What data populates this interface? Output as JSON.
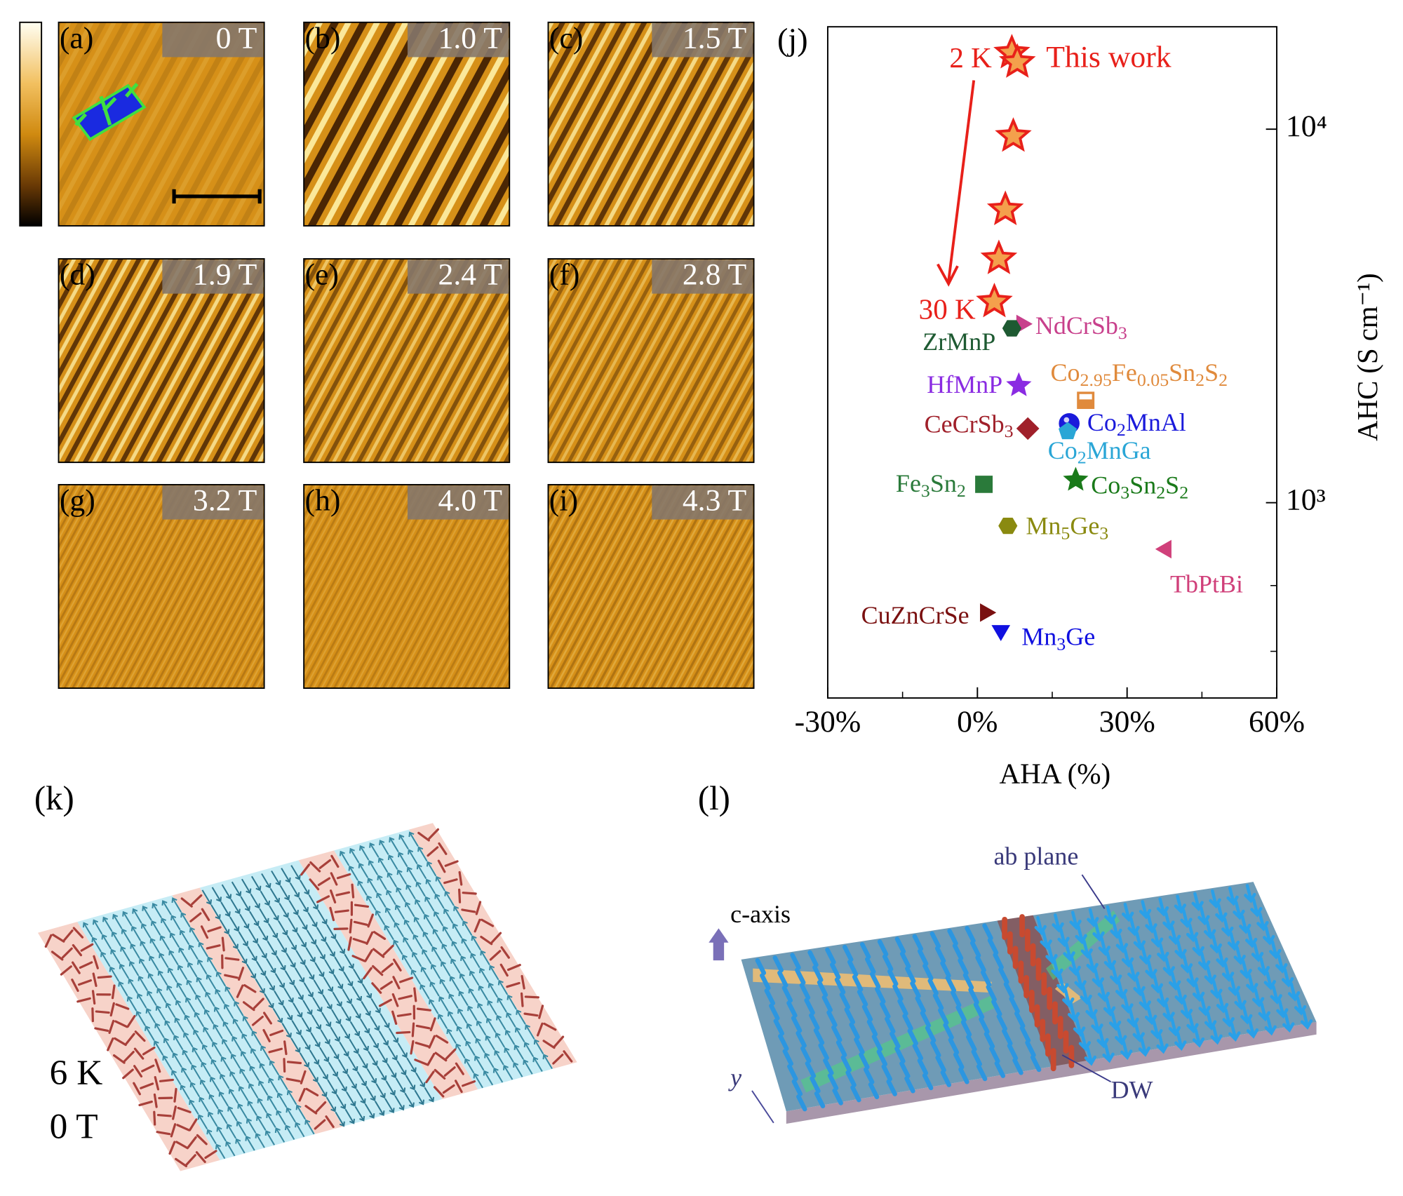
{
  "panels": [
    {
      "label": "(a)",
      "field": "0 T"
    },
    {
      "label": "(b)",
      "field": "1.0 T"
    },
    {
      "label": "(c)",
      "field": "1.5 T"
    },
    {
      "label": "(d)",
      "field": "1.9 T"
    },
    {
      "label": "(e)",
      "field": "2.4 T"
    },
    {
      "label": "(f)",
      "field": "2.8 T"
    },
    {
      "label": "(g)",
      "field": "3.2 T"
    },
    {
      "label": "(h)",
      "field": "4.0 T"
    },
    {
      "label": "(i)",
      "field": "4.3 T"
    }
  ],
  "chart_data": {
    "type": "scatter",
    "label": "(j)",
    "xlabel": "AHA (%)",
    "ylabel": "AHC (S cm⁻¹)",
    "xlim": [
      -30,
      60
    ],
    "ylim": [
      300,
      18800
    ],
    "ylog": true,
    "xticks": [
      {
        "value": -30,
        "label": "-30%"
      },
      {
        "value": 0,
        "label": "0%"
      },
      {
        "value": 30,
        "label": "30%"
      },
      {
        "value": 60,
        "label": "60%"
      }
    ],
    "xminor_ticks": [
      -15,
      15,
      45
    ],
    "yticks": [
      {
        "value": 1000,
        "label": "10³"
      },
      {
        "value": 10000,
        "label": "10⁴"
      }
    ],
    "yminor_ticks": [
      400,
      600
    ],
    "annotations": [
      "2 K",
      "30 K"
    ],
    "series": [
      {
        "name": "This work",
        "marker": "star",
        "color": "#f4a04c",
        "edge_color": "#e8201a",
        "x": [
          6.9,
          8.0,
          7.2,
          5.6,
          4.3,
          3.4
        ],
        "values": [
          16000,
          15100,
          9570,
          6090,
          4500,
          3450
        ]
      },
      {
        "name": "NdCrSb3",
        "marker": "triangle-right",
        "color": "#c8408c",
        "x": [
          8.9
        ],
        "values": [
          3010
        ]
      },
      {
        "name": "ZrMnP",
        "marker": "hexagon",
        "color": "#1e5a32",
        "x": [
          6.9
        ],
        "values": [
          2930
        ]
      },
      {
        "name": "HfMnP",
        "marker": "star",
        "color": "#8a2be2",
        "x": [
          8.3
        ],
        "values": [
          2060
        ]
      },
      {
        "name": "Co2.95Fe0.05Sn2S2",
        "marker": "half-square",
        "color": "#e08a3c",
        "x": [
          21.7
        ],
        "values": [
          1880
        ]
      },
      {
        "name": "Co2MnAl",
        "marker": "circle",
        "color": "#1a1adb",
        "x": [
          18.4
        ],
        "values": [
          1630
        ]
      },
      {
        "name": "Co2MnGa",
        "marker": "pentagon",
        "color": "#2aa6d6",
        "x": [
          18.1
        ],
        "values": [
          1550
        ]
      },
      {
        "name": "CeCrSb3",
        "marker": "diamond",
        "color": "#a0202a",
        "x": [
          10.1
        ],
        "values": [
          1580
        ]
      },
      {
        "name": "Fe3Sn2",
        "marker": "square",
        "color": "#2a7a3a",
        "x": [
          1.3
        ],
        "values": [
          1120
        ]
      },
      {
        "name": "Co3Sn2S2",
        "marker": "star",
        "color": "#1a7a1a",
        "x": [
          19.7
        ],
        "values": [
          1150
        ]
      },
      {
        "name": "Mn5Ge3",
        "marker": "hexagon",
        "color": "#8a8a10",
        "x": [
          6.1
        ],
        "values": [
          867
        ]
      },
      {
        "name": "TbPtBi",
        "marker": "triangle-left",
        "color": "#d0407a",
        "x": [
          37.8
        ],
        "values": [
          751
        ]
      },
      {
        "name": "CuZnCrSe",
        "marker": "triangle-right",
        "color": "#7a1010",
        "x": [
          1.6
        ],
        "values": [
          508
        ]
      },
      {
        "name": "Mn3Ge",
        "marker": "triangle-down",
        "color": "#1010e0",
        "x": [
          4.7
        ],
        "values": [
          455
        ]
      }
    ]
  },
  "diagram_k": {
    "label": "(k)",
    "temperature": "6 K",
    "field": "0 T"
  },
  "diagram_l": {
    "label": "(l)",
    "c_axis": "c-axis",
    "plane": "ab plane",
    "wall": "DW",
    "y_axis": "y"
  }
}
